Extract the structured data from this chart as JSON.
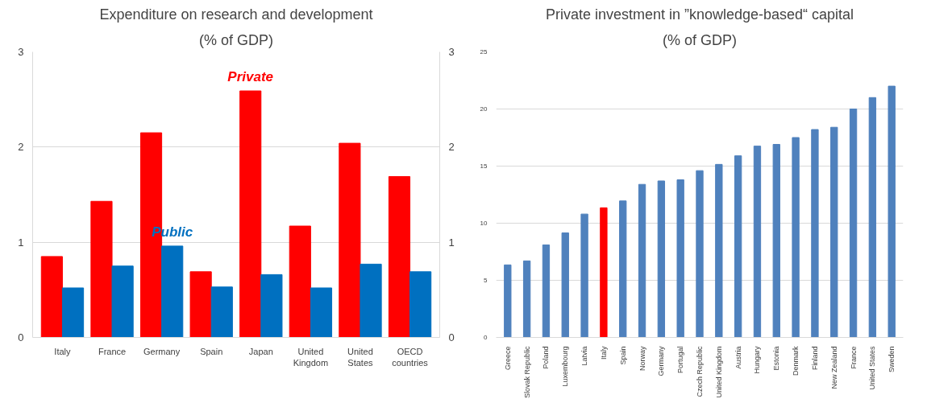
{
  "chart_data": [
    {
      "type": "bar",
      "title": "Expenditure on research and development",
      "subtitle": "(% of GDP)",
      "categories": [
        "Italy",
        "France",
        "Germany",
        "Spain",
        "Japan",
        "United Kingdom",
        "United States",
        "OECD countries"
      ],
      "series": [
        {
          "name": "Private",
          "color": "#ff0000",
          "values": [
            0.85,
            1.43,
            2.15,
            0.69,
            2.59,
            1.17,
            2.04,
            1.69
          ]
        },
        {
          "name": "Public",
          "color": "#0070c0",
          "values": [
            0.52,
            0.75,
            0.96,
            0.53,
            0.66,
            0.52,
            0.77,
            0.69
          ]
        }
      ],
      "ylim": [
        0,
        3
      ],
      "yticks": [
        0,
        1,
        2,
        3
      ],
      "y2lim": [
        0,
        3
      ],
      "y2ticks": [
        0,
        1,
        2,
        3
      ],
      "grid": "y",
      "legend": false
    },
    {
      "type": "bar",
      "title": "Private investment in ”knowledge-based“ capital",
      "subtitle": "(% of GDP)",
      "categories": [
        "Greece",
        "Slovak Republic",
        "Poland",
        "Luxembourg",
        "Latvia",
        "Italy",
        "Spain",
        "Norway",
        "Germany",
        "Portugal",
        "Czech Republic",
        "United Kingdom",
        "Austria",
        "Hungary",
        "Estonia",
        "Denmark",
        "Finland",
        "New Zealand",
        "France",
        "United States",
        "Sweden"
      ],
      "values": [
        6.35,
        6.7,
        8.1,
        9.15,
        10.8,
        11.35,
        11.95,
        13.4,
        13.7,
        13.8,
        14.6,
        15.15,
        15.9,
        16.75,
        16.9,
        17.5,
        18.2,
        18.4,
        20.0,
        21.0,
        22.0
      ],
      "colors": [
        "#4f81bd",
        "#4f81bd",
        "#4f81bd",
        "#4f81bd",
        "#4f81bd",
        "#ff0000",
        "#4f81bd",
        "#4f81bd",
        "#4f81bd",
        "#4f81bd",
        "#4f81bd",
        "#4f81bd",
        "#4f81bd",
        "#4f81bd",
        "#4f81bd",
        "#4f81bd",
        "#4f81bd",
        "#4f81bd",
        "#4f81bd",
        "#4f81bd",
        "#4f81bd"
      ],
      "ylim": [
        0,
        25
      ],
      "yticks": [
        0,
        5,
        10,
        15,
        20,
        25
      ],
      "grid": "y"
    }
  ]
}
